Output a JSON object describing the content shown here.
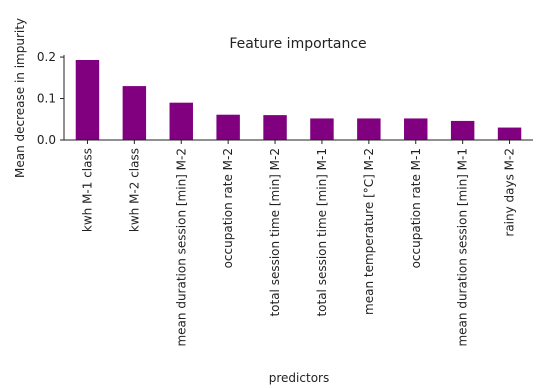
{
  "chart_data": {
    "type": "bar",
    "title": "Feature importance",
    "xlabel": "predictors",
    "ylabel": "Mean decrease in impurity",
    "ylim": [
      0,
      0.205
    ],
    "yticks": [
      0.0,
      0.1,
      0.2
    ],
    "ytick_labels": [
      "0.0",
      "0.1",
      "0.2"
    ],
    "grid": false,
    "bar_color": "#800080",
    "categories": [
      "kwh M-1 class",
      "kwh M-2 class",
      "mean duration session [min] M-2",
      "occupation rate M-2",
      "total session time [min] M-2",
      "total session time [min] M-1",
      "mean temperature [°C] M-2",
      "occupation rate M-1",
      "mean duration session [min] M-1",
      "rainy days M-2"
    ],
    "values": [
      0.193,
      0.13,
      0.09,
      0.061,
      0.06,
      0.052,
      0.052,
      0.052,
      0.046,
      0.03
    ]
  }
}
